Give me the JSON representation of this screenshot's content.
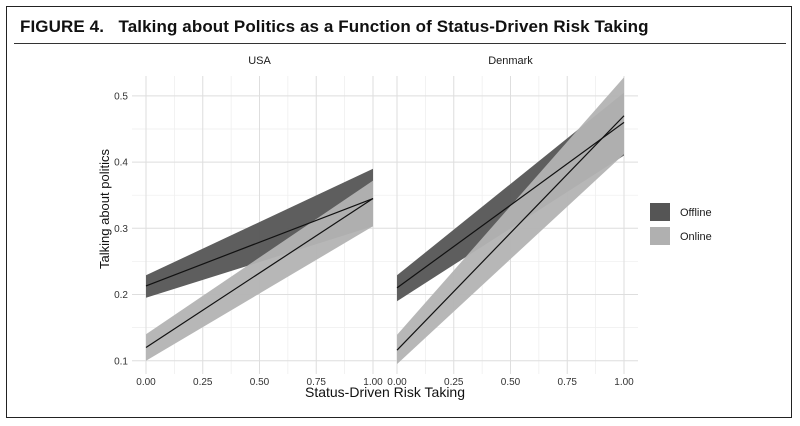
{
  "figure": {
    "label": "FIGURE 4.",
    "title": "Talking about Politics as a Function of Status-Driven Risk Taking"
  },
  "chart_data": {
    "type": "line",
    "xlabel": "Status-Driven Risk Taking",
    "ylabel": "Talking about politics",
    "xlim": [
      0,
      1
    ],
    "ylim": [
      0.08,
      0.53
    ],
    "xticks": [
      "0.00",
      "0.25",
      "0.50",
      "0.75",
      "1.00"
    ],
    "yticks": [
      "0.1",
      "0.2",
      "0.3",
      "0.4",
      "0.5"
    ],
    "grid": true,
    "legend_position": "right",
    "legend": [
      {
        "name": "Offline",
        "color": "#555555"
      },
      {
        "name": "Online",
        "color": "#b0b0b0"
      }
    ],
    "panels": [
      {
        "name": "USA",
        "series": [
          {
            "name": "Offline",
            "x": [
              0,
              1
            ],
            "y": [
              0.213,
              0.345
            ],
            "lower": [
              0.195,
              0.303
            ],
            "upper": [
              0.229,
              0.39
            ]
          },
          {
            "name": "Online",
            "x": [
              0,
              1
            ],
            "y": [
              0.12,
              0.345
            ],
            "lower": [
              0.1,
              0.303
            ],
            "upper": [
              0.14,
              0.372
            ]
          }
        ]
      },
      {
        "name": "Denmark",
        "series": [
          {
            "name": "Offline",
            "x": [
              0,
              1
            ],
            "y": [
              0.21,
              0.46
            ],
            "lower": [
              0.19,
              0.41
            ],
            "upper": [
              0.229,
              0.505
            ]
          },
          {
            "name": "Online",
            "x": [
              0,
              1
            ],
            "y": [
              0.116,
              0.47
            ],
            "lower": [
              0.095,
              0.412
            ],
            "upper": [
              0.139,
              0.528
            ]
          }
        ]
      }
    ]
  }
}
